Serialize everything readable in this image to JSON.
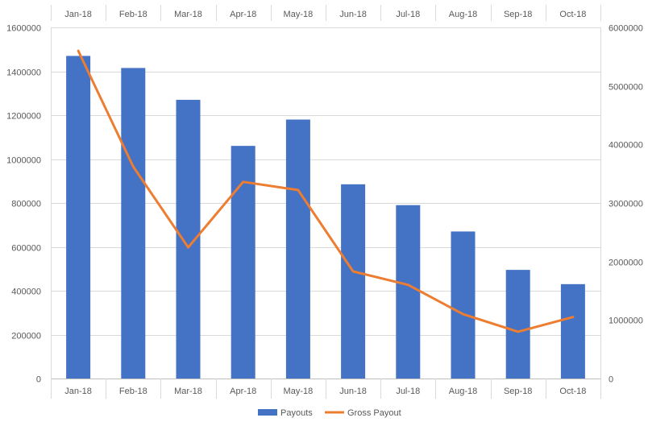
{
  "chart_data": {
    "type": "bar",
    "categories": [
      "Jan-18",
      "Feb-18",
      "Mar-18",
      "Apr-18",
      "May-18",
      "Jun-18",
      "Jul-18",
      "Aug-18",
      "Sep-18",
      "Oct-18"
    ],
    "series": [
      {
        "name": "Payouts",
        "type": "bar",
        "axis": "left",
        "color": "#4472C4",
        "values": [
          1470000,
          1415000,
          1270000,
          1060000,
          1180000,
          885000,
          790000,
          670000,
          495000,
          430000
        ]
      },
      {
        "name": "Gross Payout",
        "type": "line",
        "axis": "right",
        "color": "#ED7D31",
        "values": [
          5600000,
          3620000,
          2240000,
          3360000,
          3220000,
          1830000,
          1600000,
          1100000,
          800000,
          1050000
        ]
      }
    ],
    "y_left": {
      "ylim": [
        0,
        1600000
      ],
      "ticks": [
        "0",
        "200000",
        "400000",
        "600000",
        "800000",
        "1000000",
        "1200000",
        "1400000",
        "1600000"
      ]
    },
    "y_right": {
      "ylim": [
        0,
        6000000
      ],
      "ticks": [
        "0",
        "1000000",
        "2000000",
        "3000000",
        "4000000",
        "5000000",
        "6000000"
      ]
    },
    "x_labels_top": true,
    "x_labels_bottom": true,
    "grid": "horizontal",
    "legend": "bottom"
  }
}
